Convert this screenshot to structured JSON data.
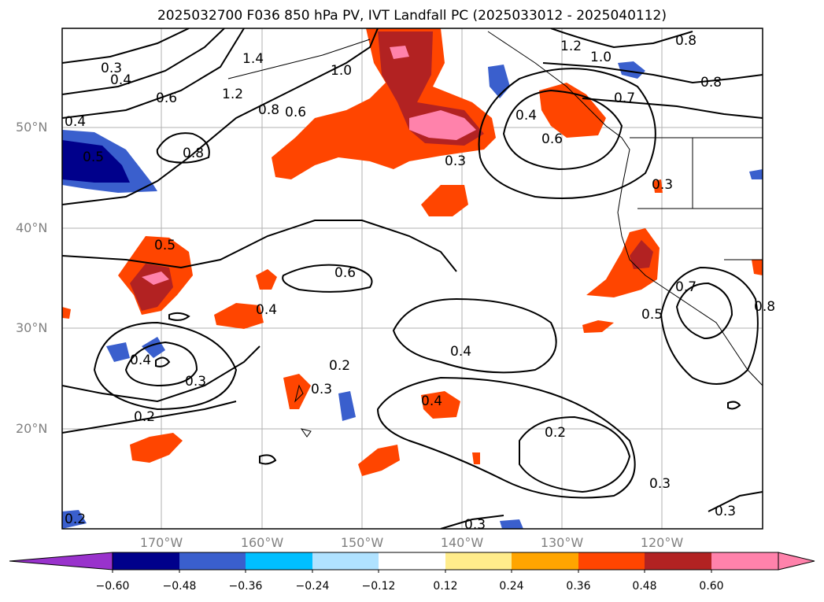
{
  "title": "2025032700 F036 850 hPa PV, IVT Landfall PC (2025033012 - 2025040112)",
  "lat_labels": [
    "50°N",
    "40°N",
    "30°N",
    "20°N"
  ],
  "lon_labels": [
    "170°W",
    "160°W",
    "150°W",
    "140°W",
    "130°W",
    "120°W"
  ],
  "colorbar": {
    "ticks": [
      "−0.60",
      "−0.48",
      "−0.36",
      "−0.24",
      "−0.12",
      "0.12",
      "0.24",
      "0.36",
      "0.48",
      "0.60"
    ],
    "colors": [
      "#9932cc",
      "#00008b",
      "#3a5fcd",
      "#00bfff",
      "#b0e2ff",
      "#ffffff",
      "#ffec8b",
      "#ffa500",
      "#ff4500",
      "#b22222",
      "#ff82ab",
      "#ff82ab"
    ]
  },
  "contour_labels": [
    "0.3",
    "0.4",
    "0.6",
    "1.2",
    "1.4",
    "1.0",
    "0.8",
    "0.6",
    "0.8",
    "1.2",
    "1.0",
    "0.8",
    "0.8",
    "0.7",
    "0.4",
    "0.6",
    "0.3",
    "0.3",
    "0.4",
    "0.5",
    "0.6",
    "0.4",
    "0.5",
    "0.7",
    "0.4",
    "0.3",
    "0.2",
    "0.3",
    "0.2",
    "0.4",
    "0.4",
    "0.2",
    "0.3",
    "0.3",
    "0.3",
    "0.2",
    "0.5",
    "0.8"
  ]
}
